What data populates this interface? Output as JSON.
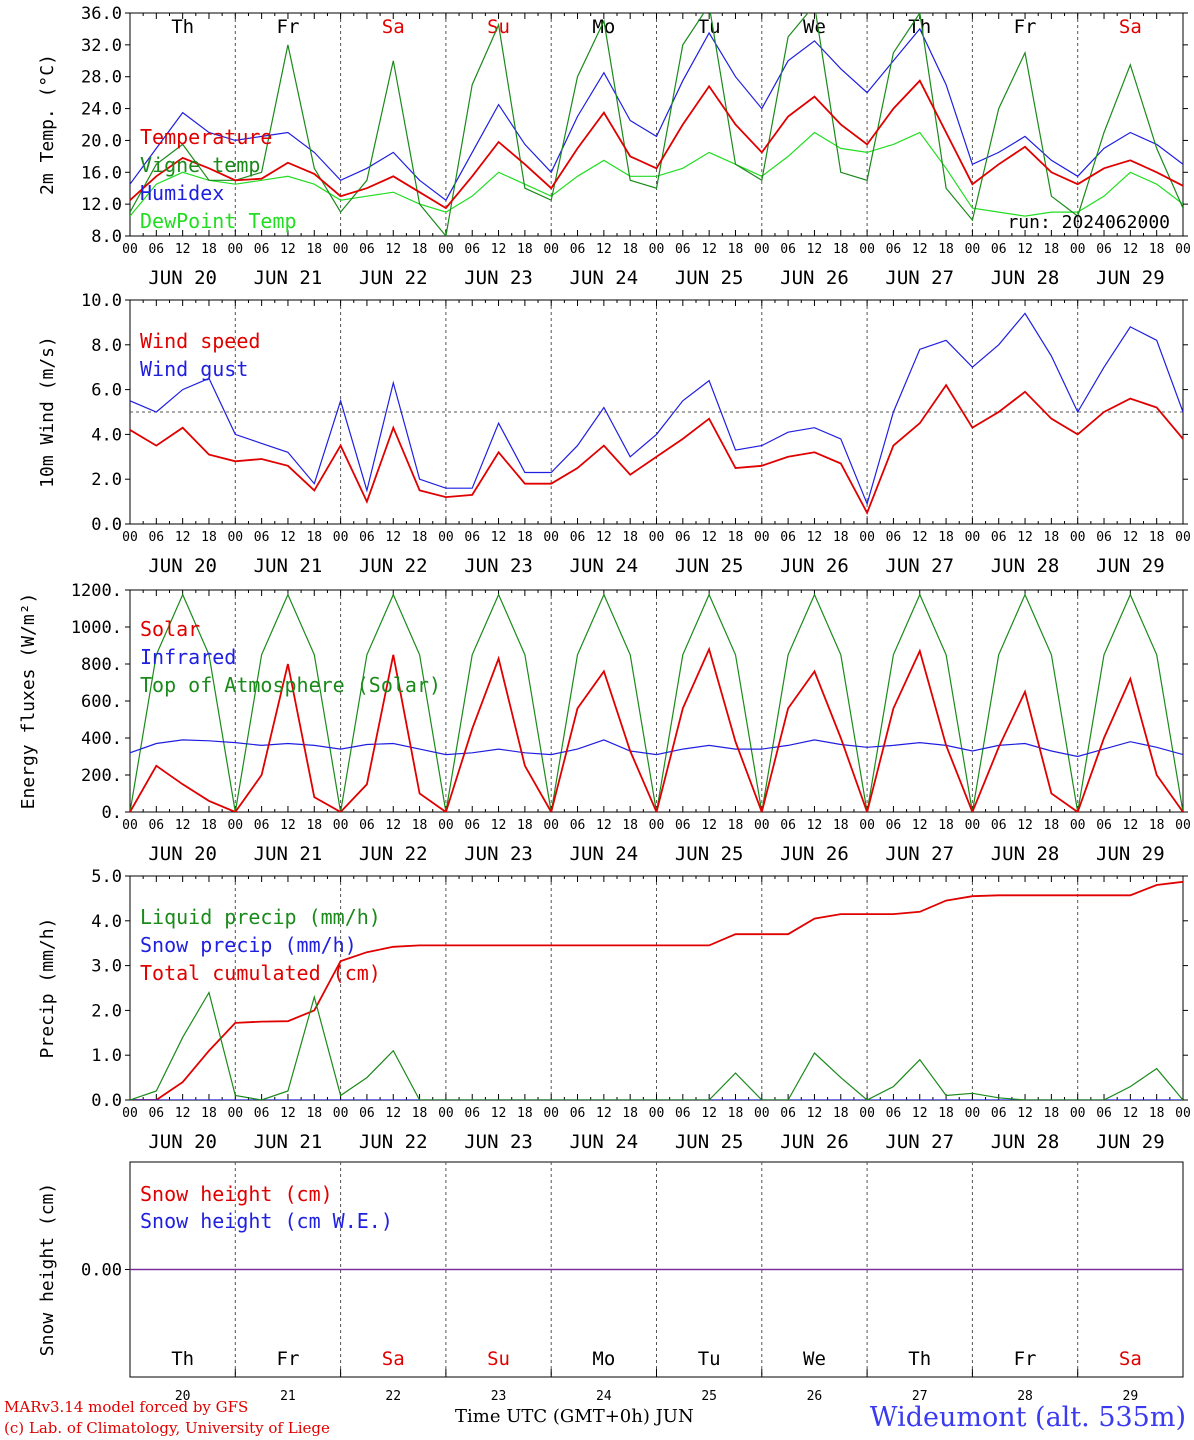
{
  "footer": {
    "model_line": "MARv3.14 model forced by GFS",
    "credit_line": "(c) Lab. of Climatology, University of Liege",
    "station": "Wideumont (alt. 535m)",
    "xlabel": "Time UTC (GMT+0h) JUN"
  },
  "colors": {
    "red": "#e00000",
    "green": "#1a8a1a",
    "blue": "#1f1fe0",
    "lightgreen": "#22dd22",
    "purple": "#7a2a9a",
    "axis": "#000000",
    "grid": "#555555"
  },
  "days": [
    {
      "label": "JUN 20",
      "weekday": "Th",
      "num": "20",
      "weekend": false
    },
    {
      "label": "JUN 21",
      "weekday": "Fr",
      "num": "21",
      "weekend": false
    },
    {
      "label": "JUN 22",
      "weekday": "Sa",
      "num": "22",
      "weekend": true
    },
    {
      "label": "JUN 23",
      "weekday": "Su",
      "num": "23",
      "weekend": true
    },
    {
      "label": "JUN 24",
      "weekday": "Mo",
      "num": "24",
      "weekend": false
    },
    {
      "label": "JUN 25",
      "weekday": "Tu",
      "num": "25",
      "weekend": false
    },
    {
      "label": "JUN 26",
      "weekday": "We",
      "num": "26",
      "weekend": false
    },
    {
      "label": "JUN 27",
      "weekday": "Th",
      "num": "27",
      "weekend": false
    },
    {
      "label": "JUN 28",
      "weekday": "Fr",
      "num": "28",
      "weekend": false
    },
    {
      "label": "JUN 29",
      "weekday": "Sa",
      "num": "29",
      "weekend": true
    }
  ],
  "hour_ticks": [
    "00",
    "06",
    "12",
    "18"
  ],
  "chart_data": [
    {
      "type": "line",
      "ylabel": "2m Temp. (°C)",
      "ylim": [
        8,
        36
      ],
      "yticks": [
        "8.0",
        "12.0",
        "16.0",
        "20.0",
        "24.0",
        "28.0",
        "32.0",
        "36.0"
      ],
      "annotation": "run: 2024062000",
      "x_hours": [
        0,
        6,
        12,
        18,
        24,
        30,
        36,
        42,
        48,
        54,
        60,
        66,
        72,
        78,
        84,
        90,
        96,
        102,
        108,
        114,
        120,
        126,
        132,
        138,
        144,
        150,
        156,
        162,
        168,
        174,
        180,
        186,
        192,
        198,
        204,
        210,
        216,
        222,
        228,
        234,
        240
      ],
      "series": [
        {
          "name": "Temperature",
          "color": "red",
          "values": [
            12.5,
            15.5,
            17.8,
            16.5,
            15.0,
            15.2,
            17.2,
            15.8,
            13.0,
            14.0,
            15.5,
            13.5,
            11.5,
            15.5,
            19.8,
            17.0,
            14.0,
            19.0,
            23.5,
            18.0,
            16.5,
            22.0,
            26.8,
            22.0,
            18.5,
            23.0,
            25.5,
            22.0,
            19.5,
            24.0,
            27.5,
            21.0,
            14.5,
            17.0,
            19.2,
            16.0,
            14.5,
            16.5,
            17.5,
            16.0,
            14.3
          ]
        },
        {
          "name": "Vigne temp",
          "color": "green",
          "values": [
            11.0,
            17.0,
            19.5,
            15.0,
            15.0,
            16.0,
            32.0,
            16.5,
            11.0,
            15.0,
            30.0,
            12.0,
            8.0,
            27.0,
            34.5,
            14.0,
            12.5,
            28.0,
            35.0,
            15.0,
            14.0,
            32.0,
            37.0,
            17.0,
            15.0,
            33.0,
            37.0,
            16.0,
            15.0,
            31.0,
            36.0,
            14.0,
            10.0,
            24.0,
            31.0,
            13.0,
            10.5,
            21.0,
            29.5,
            19.0,
            11.5
          ]
        },
        {
          "name": "Humidex",
          "color": "blue",
          "values": [
            14.5,
            19.0,
            23.5,
            21.0,
            20.0,
            20.5,
            21.0,
            18.5,
            15.0,
            16.5,
            18.5,
            15.0,
            12.5,
            18.5,
            24.5,
            19.5,
            16.0,
            23.0,
            28.5,
            22.5,
            20.5,
            27.5,
            33.5,
            28.0,
            24.0,
            30.0,
            32.5,
            29.0,
            26.0,
            30.0,
            34.0,
            27.0,
            17.0,
            18.5,
            20.5,
            17.5,
            15.5,
            19.0,
            21.0,
            19.5,
            17.0
          ]
        },
        {
          "name": "DewPoint Temp",
          "color": "lightgreen",
          "values": [
            10.5,
            14.5,
            16.0,
            15.0,
            14.5,
            15.0,
            15.5,
            14.5,
            12.5,
            13.0,
            13.5,
            12.0,
            11.0,
            13.0,
            16.0,
            14.5,
            13.0,
            15.5,
            17.5,
            15.5,
            15.5,
            16.5,
            18.5,
            17.0,
            15.5,
            18.0,
            21.0,
            19.0,
            18.5,
            19.5,
            21.0,
            16.5,
            11.5,
            11.0,
            10.5,
            11.0,
            11.0,
            13.0,
            16.0,
            14.5,
            12.0
          ]
        }
      ]
    },
    {
      "type": "line",
      "ylabel": "10m Wind (m/s)",
      "ylim": [
        0,
        10
      ],
      "yticks": [
        "0.0",
        "2.0",
        "4.0",
        "6.0",
        "8.0",
        "10.0"
      ],
      "reference_line": 5.0,
      "x_hours": [
        0,
        6,
        12,
        18,
        24,
        30,
        36,
        42,
        48,
        54,
        60,
        66,
        72,
        78,
        84,
        90,
        96,
        102,
        108,
        114,
        120,
        126,
        132,
        138,
        144,
        150,
        156,
        162,
        168,
        174,
        180,
        186,
        192,
        198,
        204,
        210,
        216,
        222,
        228,
        234,
        240
      ],
      "series": [
        {
          "name": "Wind speed",
          "color": "red",
          "values": [
            4.2,
            3.5,
            4.3,
            3.1,
            2.8,
            2.9,
            2.6,
            1.5,
            3.5,
            1.0,
            4.3,
            1.5,
            1.2,
            1.3,
            3.2,
            1.8,
            1.8,
            2.5,
            3.5,
            2.2,
            3.0,
            3.8,
            4.7,
            2.5,
            2.6,
            3.0,
            3.2,
            2.7,
            0.5,
            3.5,
            4.5,
            6.2,
            4.3,
            5.0,
            5.9,
            4.7,
            4.0,
            5.0,
            5.6,
            5.2,
            3.8
          ]
        },
        {
          "name": "Wind gust",
          "color": "blue",
          "values": [
            5.5,
            5.0,
            6.0,
            6.5,
            4.0,
            3.6,
            3.2,
            1.8,
            5.5,
            1.5,
            6.3,
            2.0,
            1.6,
            1.6,
            4.5,
            2.3,
            2.3,
            3.5,
            5.2,
            3.0,
            4.0,
            5.5,
            6.4,
            3.3,
            3.5,
            4.1,
            4.3,
            3.8,
            0.9,
            5.0,
            7.8,
            8.2,
            7.0,
            8.0,
            9.4,
            7.5,
            5.0,
            7.0,
            8.8,
            8.2,
            5.0
          ]
        }
      ]
    },
    {
      "type": "line",
      "ylabel": "Energy fluxes (W/m²)",
      "ylim": [
        0,
        1200
      ],
      "yticks": [
        "0.",
        "200.",
        "400.",
        "600.",
        "800.",
        "1000.",
        "1200."
      ],
      "x_hours": [
        0,
        6,
        12,
        18,
        24,
        30,
        36,
        42,
        48,
        54,
        60,
        66,
        72,
        78,
        84,
        90,
        96,
        102,
        108,
        114,
        120,
        126,
        132,
        138,
        144,
        150,
        156,
        162,
        168,
        174,
        180,
        186,
        192,
        198,
        204,
        210,
        216,
        222,
        228,
        234,
        240
      ],
      "series": [
        {
          "name": "Solar",
          "color": "red",
          "values": [
            0,
            250,
            150,
            60,
            0,
            200,
            800,
            80,
            0,
            150,
            850,
            100,
            0,
            450,
            830,
            250,
            0,
            560,
            760,
            330,
            0,
            560,
            880,
            380,
            0,
            560,
            760,
            400,
            0,
            560,
            870,
            360,
            0,
            350,
            650,
            100,
            0,
            400,
            720,
            200,
            0
          ]
        },
        {
          "name": "Infrared",
          "color": "blue",
          "values": [
            320,
            370,
            390,
            385,
            375,
            360,
            370,
            360,
            340,
            365,
            370,
            340,
            310,
            320,
            340,
            320,
            310,
            340,
            390,
            330,
            310,
            340,
            360,
            340,
            340,
            360,
            390,
            365,
            350,
            360,
            375,
            360,
            330,
            360,
            370,
            330,
            300,
            340,
            380,
            350,
            310
          ]
        },
        {
          "name": "Top of Atmosphere (Solar)",
          "color": "green",
          "values": [
            0,
            850,
            1175,
            850,
            0,
            850,
            1175,
            850,
            0,
            850,
            1175,
            850,
            0,
            850,
            1175,
            850,
            0,
            850,
            1175,
            850,
            0,
            850,
            1175,
            850,
            0,
            850,
            1175,
            850,
            0,
            850,
            1175,
            850,
            0,
            850,
            1175,
            850,
            0,
            850,
            1175,
            850,
            0
          ]
        }
      ]
    },
    {
      "type": "line",
      "ylabel": "Precip (mm/h)",
      "ylim": [
        0,
        5
      ],
      "yticks": [
        "0.0",
        "1.0",
        "2.0",
        "3.0",
        "4.0",
        "5.0"
      ],
      "x_hours": [
        0,
        6,
        12,
        18,
        24,
        30,
        36,
        42,
        48,
        54,
        60,
        66,
        72,
        78,
        84,
        90,
        96,
        102,
        108,
        114,
        120,
        126,
        132,
        138,
        144,
        150,
        156,
        162,
        168,
        174,
        180,
        186,
        192,
        198,
        204,
        210,
        216,
        222,
        228,
        234,
        240
      ],
      "series": [
        {
          "name": "Liquid precip (mm/h)",
          "color": "green",
          "values": [
            0,
            0.2,
            1.4,
            2.4,
            0.1,
            0,
            0.2,
            2.3,
            0.1,
            0.5,
            1.1,
            0,
            0,
            0,
            0,
            0,
            0,
            0,
            0,
            0,
            0,
            0,
            0,
            0.6,
            0,
            0,
            1.05,
            0.5,
            0,
            0.3,
            0.9,
            0.1,
            0.15,
            0.05,
            0,
            0,
            0,
            0,
            0.3,
            0.7,
            0
          ]
        },
        {
          "name": "Snow precip (mm/h)",
          "color": "blue",
          "values": [
            0,
            0,
            0,
            0,
            0,
            0,
            0,
            0,
            0,
            0,
            0,
            0,
            0,
            0,
            0,
            0,
            0,
            0,
            0,
            0,
            0,
            0,
            0,
            0,
            0,
            0,
            0,
            0,
            0,
            0,
            0,
            0,
            0,
            0,
            0,
            0,
            0,
            0,
            0,
            0,
            0
          ]
        },
        {
          "name": "Total cumulated (cm)",
          "color": "red",
          "values": [
            0,
            0,
            0.4,
            1.1,
            1.72,
            1.75,
            1.76,
            2.0,
            3.1,
            3.3,
            3.42,
            3.45,
            3.45,
            3.45,
            3.45,
            3.45,
            3.45,
            3.45,
            3.45,
            3.45,
            3.45,
            3.45,
            3.45,
            3.7,
            3.7,
            3.7,
            4.05,
            4.15,
            4.15,
            4.15,
            4.2,
            4.45,
            4.55,
            4.57,
            4.57,
            4.57,
            4.57,
            4.57,
            4.57,
            4.8,
            4.87
          ]
        }
      ]
    },
    {
      "type": "line",
      "ylabel": "Snow height (cm)",
      "ylim": [
        -1,
        1
      ],
      "yticks": [
        "0.00"
      ],
      "x_hours": [
        0,
        240
      ],
      "series": [
        {
          "name": "Snow height (cm)",
          "color": "red",
          "values": [
            0,
            0
          ]
        },
        {
          "name": "Snow height (cm W.E.)",
          "color": "blue",
          "values": [
            0,
            0
          ]
        }
      ]
    }
  ]
}
